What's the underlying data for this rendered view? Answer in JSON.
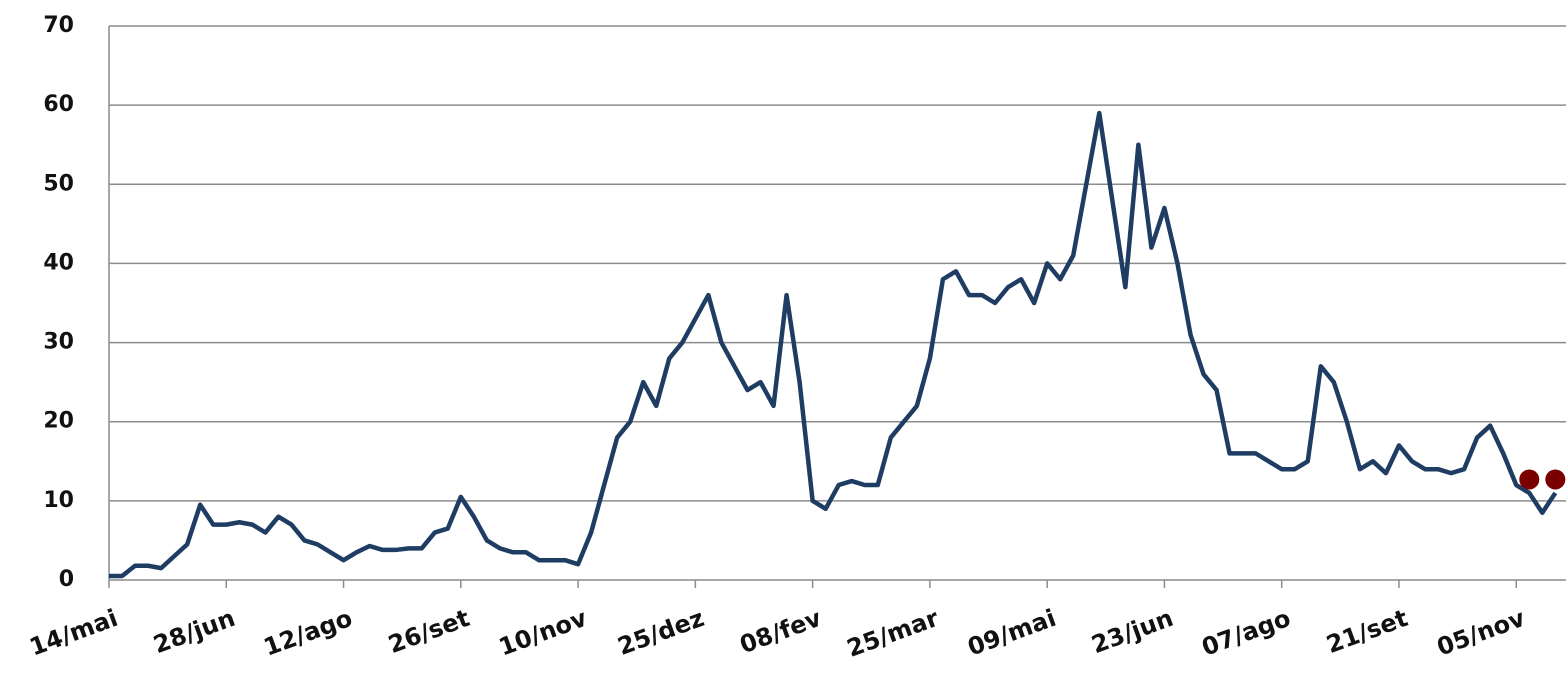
{
  "chart_data": {
    "type": "line",
    "categories": [
      "14/mai",
      null,
      null,
      null,
      null,
      null,
      null,
      null,
      null,
      "28/jun",
      null,
      null,
      null,
      null,
      null,
      null,
      null,
      null,
      "12/ago",
      null,
      null,
      null,
      null,
      null,
      null,
      null,
      null,
      "26/set",
      null,
      null,
      null,
      null,
      null,
      null,
      null,
      null,
      "10/nov",
      null,
      null,
      null,
      null,
      null,
      null,
      null,
      null,
      "25/dez",
      null,
      null,
      null,
      null,
      null,
      null,
      null,
      null,
      "08/fev",
      null,
      null,
      null,
      null,
      null,
      null,
      null,
      null,
      "25/mar",
      null,
      null,
      null,
      null,
      null,
      null,
      null,
      null,
      "09/mai",
      null,
      null,
      null,
      null,
      null,
      null,
      null,
      null,
      "23/jun",
      null,
      null,
      null,
      null,
      null,
      null,
      null,
      null,
      "07/ago",
      null,
      null,
      null,
      null,
      null,
      null,
      null,
      null,
      "21/set",
      null,
      null,
      null,
      null,
      null,
      null,
      null,
      null,
      "05/nov",
      null,
      null,
      null
    ],
    "series": [
      {
        "color": "#1f3d63",
        "values": [
          0.5,
          0.5,
          1.8,
          1.8,
          1.5,
          3,
          4.5,
          9.5,
          7,
          7,
          7.3,
          7,
          6,
          8,
          7,
          5,
          4.5,
          3.5,
          2.5,
          3.5,
          4.3,
          3.8,
          3.8,
          4,
          4,
          6,
          6.5,
          10.5,
          8,
          5,
          4,
          3.5,
          3.5,
          2.5,
          2.5,
          2.5,
          2,
          6,
          12,
          18,
          20,
          25,
          22,
          28,
          30,
          33,
          36,
          30,
          27,
          24,
          25,
          22,
          36,
          25,
          10,
          9,
          12,
          12.5,
          12,
          12,
          18,
          20,
          22,
          28,
          38,
          39,
          36,
          36,
          35,
          37,
          38,
          35,
          40,
          38,
          41,
          50,
          59,
          48,
          37,
          55,
          42,
          47,
          40,
          31,
          26,
          24,
          16,
          16,
          16,
          15,
          14,
          14,
          15,
          27,
          25,
          20,
          14,
          15,
          13.5,
          17,
          15,
          14,
          14,
          13.5,
          14,
          18,
          19.5,
          16,
          12,
          11,
          8.5,
          11
        ]
      },
      {
        "color": "#7a0000",
        "values": [
          null,
          null,
          null,
          null,
          null,
          null,
          null,
          null,
          null,
          null,
          null,
          null,
          null,
          null,
          null,
          null,
          null,
          null,
          null,
          null,
          null,
          null,
          null,
          null,
          null,
          null,
          null,
          null,
          null,
          null,
          null,
          null,
          null,
          null,
          null,
          null,
          null,
          null,
          null,
          null,
          null,
          null,
          null,
          null,
          null,
          null,
          null,
          null,
          null,
          null,
          null,
          null,
          null,
          null,
          null,
          null,
          null,
          null,
          null,
          null,
          null,
          null,
          null,
          null,
          null,
          null,
          null,
          null,
          null,
          null,
          null,
          null,
          null,
          null,
          null,
          null,
          null,
          null,
          null,
          null,
          null,
          null,
          null,
          null,
          null,
          null,
          null,
          null,
          null,
          null,
          null,
          null,
          null,
          null,
          null,
          null,
          null,
          null,
          null,
          null,
          null,
          null,
          null,
          null,
          null,
          null,
          null,
          null,
          null,
          12.7,
          null,
          12.7
        ]
      }
    ],
    "ylim": [
      0,
      70
    ],
    "yticks": [
      0,
      10,
      20,
      30,
      40,
      50,
      60,
      70
    ],
    "grid": true
  }
}
